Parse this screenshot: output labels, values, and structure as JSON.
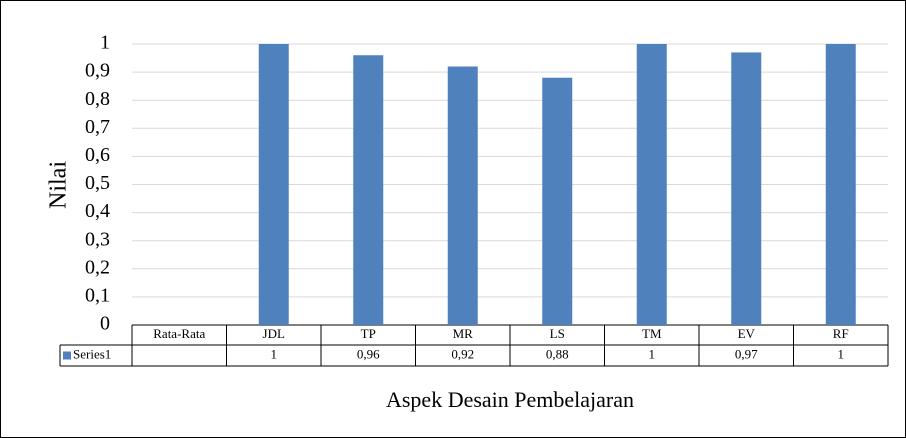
{
  "chart_data": {
    "type": "bar",
    "y_label": "Nilai",
    "x_label": "Aspek Desain Pembelajaran",
    "categories": [
      "Rata-Rata",
      "JDL",
      "TP",
      "MR",
      "LS",
      "TM",
      "EV",
      "RF"
    ],
    "series": [
      {
        "name": "Series1",
        "color": "#4f81bd",
        "values": [
          null,
          1,
          0.96,
          0.92,
          0.88,
          1,
          0.97,
          1
        ],
        "value_labels": [
          null,
          "1",
          "0,96",
          "0,92",
          "0,88",
          "1",
          "0,97",
          "1"
        ]
      }
    ],
    "ylim": [
      0,
      1
    ],
    "yticks": [
      0,
      {
        "value": 0.1,
        "label": "0,1"
      },
      {
        "value": 0.2,
        "label": "0,2"
      },
      {
        "value": 0.3,
        "label": "0,3"
      },
      {
        "value": 0.4,
        "label": "0,4"
      },
      {
        "value": 0.5,
        "label": "0,5"
      },
      {
        "value": 0.6,
        "label": "0,6"
      },
      {
        "value": 0.7,
        "label": "0,7"
      },
      {
        "value": 0.8,
        "label": "0,8"
      },
      {
        "value": 0.9,
        "label": "0,9"
      },
      1
    ],
    "grid": true,
    "data_table": true
  }
}
